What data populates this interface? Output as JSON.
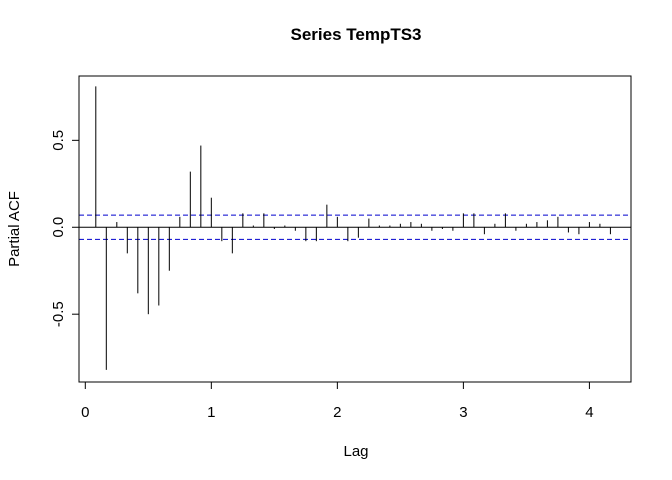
{
  "chart_data": {
    "type": "bar",
    "title": "Series  TempTS3",
    "xlabel": "Lag",
    "ylabel": "Partial ACF",
    "xlim": [
      -0.05,
      4.33
    ],
    "ylim": [
      -0.89,
      0.87
    ],
    "x_ticks": [
      "0",
      "1",
      "2",
      "3",
      "4"
    ],
    "y_ticks": [
      "-0.5",
      "0.0",
      "0.5"
    ],
    "ci_bound": 0.07,
    "ci_color": "#0000cd",
    "lags": [
      0.0833,
      0.1667,
      0.25,
      0.3333,
      0.4167,
      0.5,
      0.5833,
      0.6667,
      0.75,
      0.8333,
      0.9167,
      1.0,
      1.0833,
      1.1667,
      1.25,
      1.3333,
      1.4167,
      1.5,
      1.5833,
      1.6667,
      1.75,
      1.8333,
      1.9167,
      2.0,
      2.0833,
      2.1667,
      2.25,
      2.3333,
      2.4167,
      2.5,
      2.5833,
      2.6667,
      2.75,
      2.8333,
      2.9167,
      3.0,
      3.0833,
      3.1667,
      3.25,
      3.3333,
      3.4167,
      3.5,
      3.5833,
      3.6667,
      3.75,
      3.8333,
      3.9167,
      4.0,
      4.0833,
      4.1667
    ],
    "values": [
      0.81,
      -0.82,
      0.03,
      -0.15,
      -0.38,
      -0.5,
      -0.45,
      -0.25,
      0.06,
      0.32,
      0.47,
      0.17,
      -0.08,
      -0.15,
      0.08,
      0.01,
      0.08,
      -0.01,
      0.01,
      -0.02,
      -0.08,
      -0.08,
      0.13,
      0.06,
      -0.08,
      -0.06,
      0.05,
      0.01,
      0.01,
      0.02,
      0.03,
      0.02,
      -0.02,
      -0.01,
      -0.02,
      0.08,
      0.08,
      -0.04,
      0.02,
      0.08,
      -0.02,
      0.02,
      0.03,
      0.04,
      0.06,
      -0.03,
      -0.04,
      0.03,
      0.02,
      -0.04
    ]
  }
}
